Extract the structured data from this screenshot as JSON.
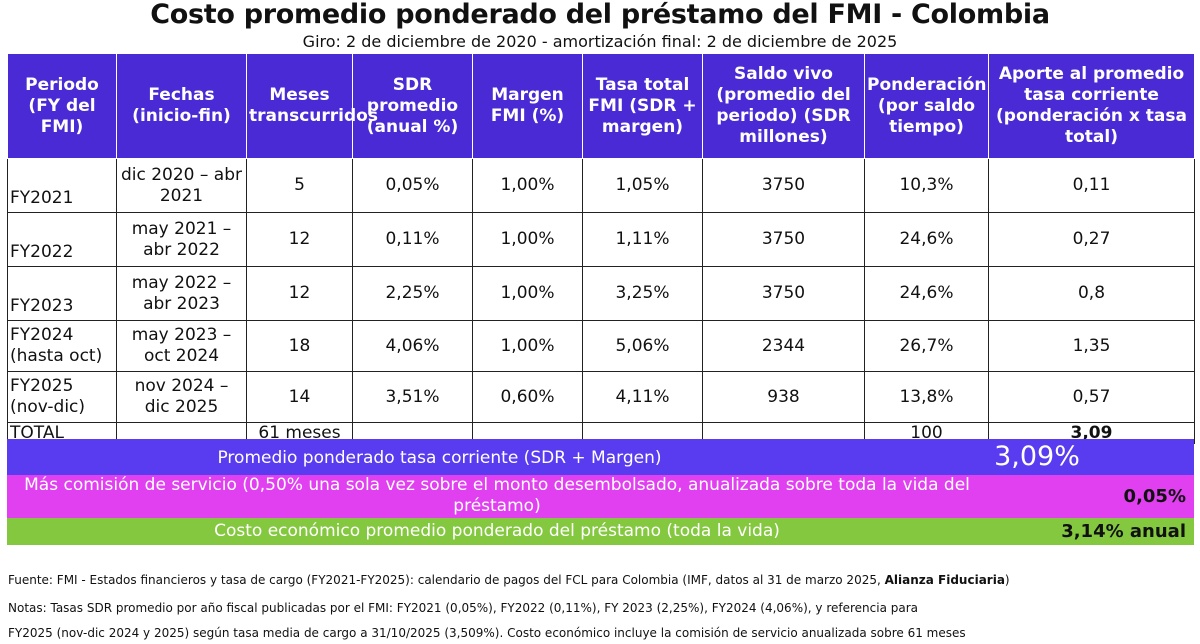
{
  "title": "Costo promedio ponderado del préstamo del FMI - Colombia",
  "subtitle": "Giro: 2 de diciembre de 2020 - amortización final: 2 de diciembre de 2025",
  "headers": [
    "Periodo (FY del FMI)",
    "Fechas (inicio-fin)",
    "Meses transcurridos",
    "SDR promedio (anual %)",
    "Margen FMI (%)",
    "Tasa total FMI (SDR + margen)",
    "Saldo vivo (promedio del periodo) (SDR millones)",
    "Ponderación (por saldo tiempo)",
    "Aporte al promedio tasa corriente (ponderación x tasa total)"
  ],
  "rows": [
    {
      "period": "FY2021",
      "period2": "",
      "dates": "dic 2020 – abr 2021",
      "months": "5",
      "sdr": "0,05%",
      "margin": "1,00%",
      "total": "1,05%",
      "balance": "3750",
      "weight": "10,3%",
      "contrib": "0,11"
    },
    {
      "period": "FY2022",
      "period2": "",
      "dates": "may 2021 – abr 2022",
      "months": "12",
      "sdr": "0,11%",
      "margin": "1,00%",
      "total": "1,11%",
      "balance": "3750",
      "weight": "24,6%",
      "contrib": "0,27"
    },
    {
      "period": "FY2023",
      "period2": "",
      "dates": "may 2022 – abr 2023",
      "months": "12",
      "sdr": "2,25%",
      "margin": "1,00%",
      "total": "3,25%",
      "balance": "3750",
      "weight": "24,6%",
      "contrib": "0,8"
    },
    {
      "period": "FY2024",
      "period2": "(hasta oct)",
      "dates": "may 2023 – oct 2024",
      "months": "18",
      "sdr": "4,06%",
      "margin": "1,00%",
      "total": "5,06%",
      "balance": "2344",
      "weight": "26,7%",
      "contrib": "1,35"
    },
    {
      "period": "FY2025",
      "period2": "(nov-dic)",
      "dates": "nov 2024 – dic 2025",
      "months": "14",
      "sdr": "3,51%",
      "margin": "0,60%",
      "total": "4,11%",
      "balance": "938",
      "weight": "13,8%",
      "contrib": "0,57"
    }
  ],
  "total_row": {
    "label": "TOTAL",
    "months": "61 meses",
    "weight": "100",
    "contrib": "3,09"
  },
  "summary": {
    "avg_label": "Promedio ponderado tasa corriente (SDR + Margen)",
    "avg_value": "3,09%",
    "fee_label": "Más comisión de servicio (0,50% una sola vez sobre el monto desembolsado, anualizada sobre toda la vida del préstamo)",
    "fee_value": "0,05%",
    "cost_label": "Costo económico promedio ponderado del préstamo (toda la vida)",
    "cost_value": "3,14% anual"
  },
  "notes": {
    "source_text": "Fuente: FMI - Estados financieros y tasa de cargo (FY2021-FY2025): calendario de pagos del FCL para Colombia (IMF, datos al 31 de marzo 2025, ",
    "source_bold": "Alianza Fiduciaria",
    "source_end": ")",
    "notes_line1": "Notas: Tasas SDR promedio por año fiscal publicadas por el FMI: FY2021 (0,05%), FY2022 (0,11%), FY 2023 (2,25%), FY2024 (4,06%), y referencia para",
    "notes_line2": "FY2025 (nov-dic 2024 y 2025) según tasa media de cargo a 31/10/2025 (3,509%). Costo económico incluye la comisión de servicio anualizada sobre 61 meses"
  },
  "colors": {
    "header_bg": "#4a2ad4",
    "avg_band": "#5a3cf0",
    "fee_band": "#e040f0",
    "cost_band": "#84c840"
  }
}
